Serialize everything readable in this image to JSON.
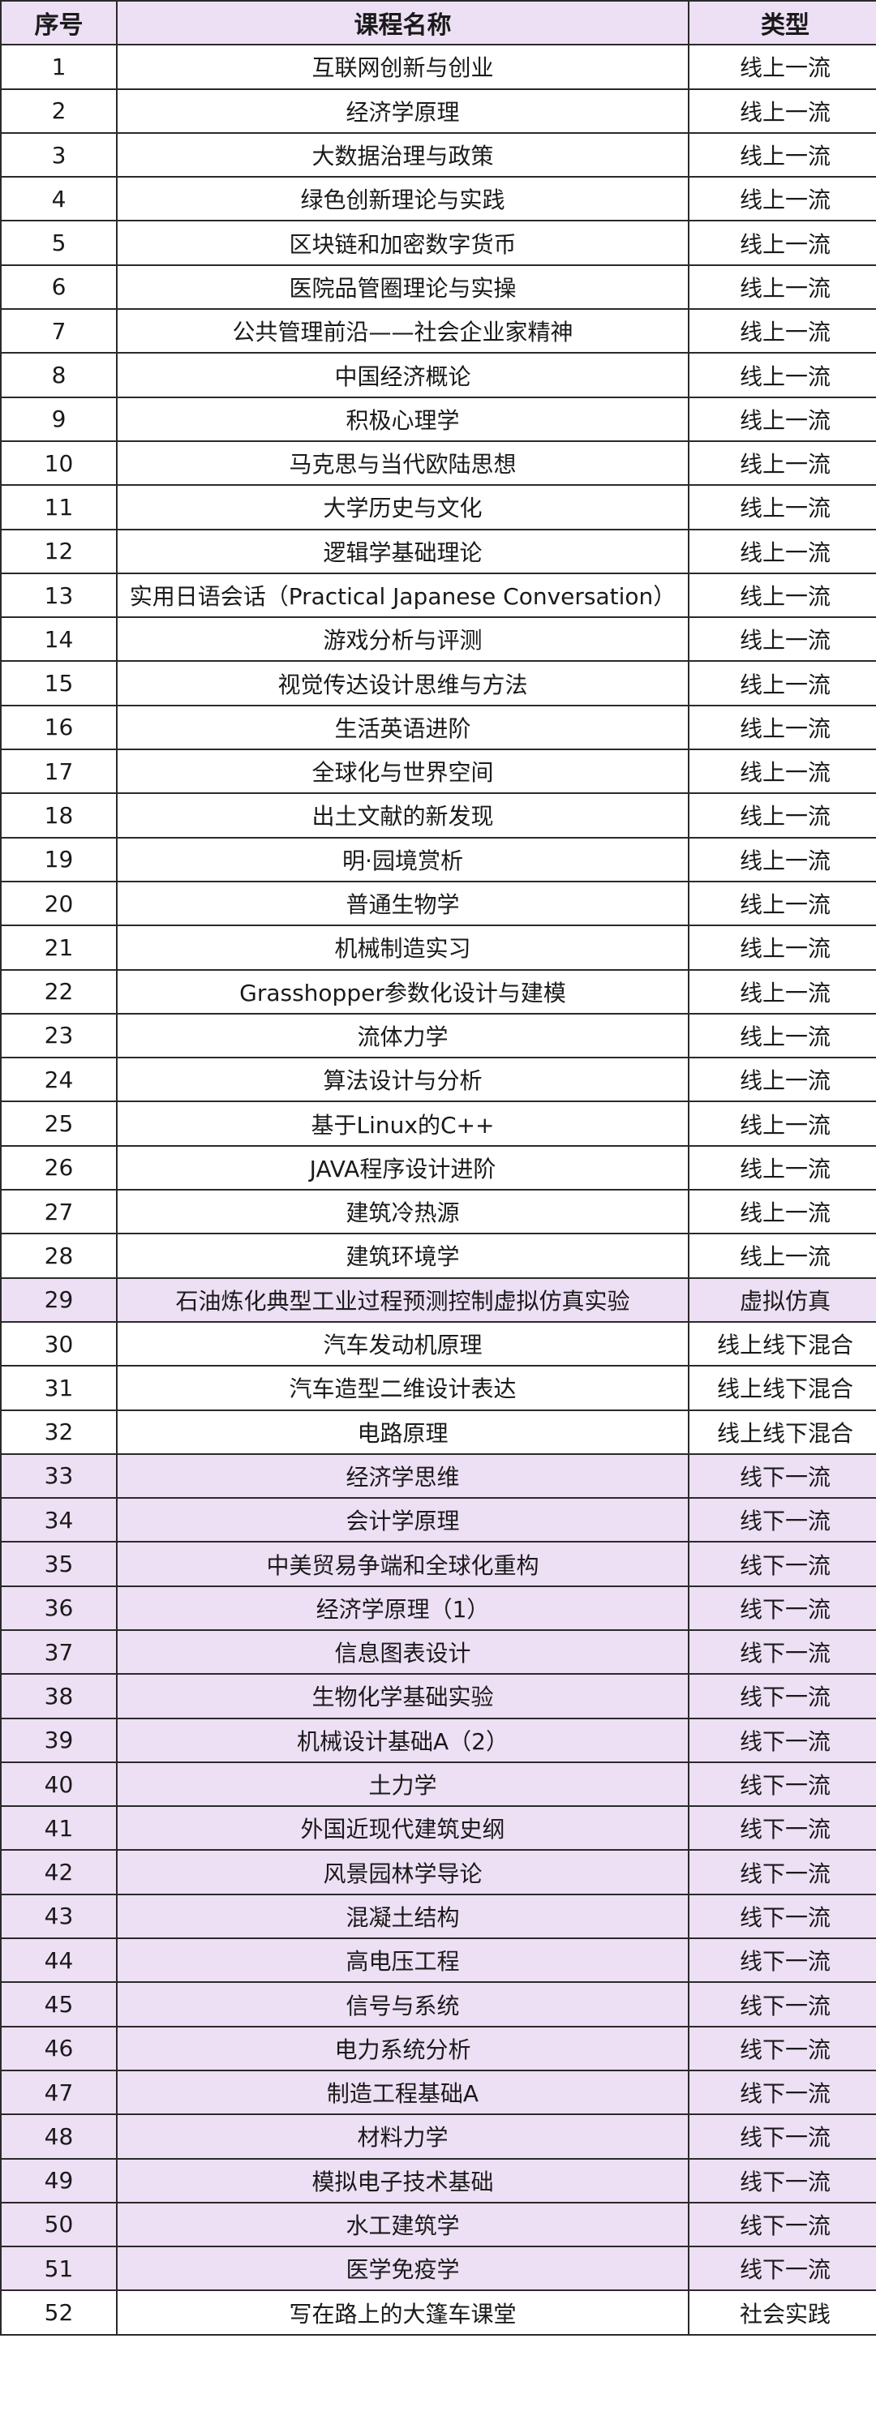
{
  "header_bg": "#eddff4",
  "columns": [
    "序号",
    "课程名称",
    "类型"
  ],
  "rows": [
    {
      "no": "1",
      "name": "互联网创新与创业",
      "type": "线上一流"
    },
    {
      "no": "2",
      "name": "经济学原理",
      "type": "线上一流"
    },
    {
      "no": "3",
      "name": "大数据治理与政策",
      "type": "线上一流"
    },
    {
      "no": "4",
      "name": "绿色创新理论与实践",
      "type": "线上一流"
    },
    {
      "no": "5",
      "name": "区块链和加密数字货币",
      "type": "线上一流"
    },
    {
      "no": "6",
      "name": "医院品管圈理论与实操",
      "type": "线上一流"
    },
    {
      "no": "7",
      "name": "公共管理前沿——社会企业家精神",
      "type": "线上一流"
    },
    {
      "no": "8",
      "name": "中国经济概论",
      "type": "线上一流"
    },
    {
      "no": "9",
      "name": "积极心理学",
      "type": "线上一流"
    },
    {
      "no": "10",
      "name": "马克思与当代欧陆思想",
      "type": "线上一流"
    },
    {
      "no": "11",
      "name": "大学历史与文化",
      "type": "线上一流"
    },
    {
      "no": "12",
      "name": "逻辑学基础理论",
      "type": "线上一流"
    },
    {
      "no": "13",
      "name": "实用日语会话（Practical Japanese Conversation）",
      "type": "线上一流"
    },
    {
      "no": "14",
      "name": "游戏分析与评测",
      "type": "线上一流"
    },
    {
      "no": "15",
      "name": "视觉传达设计思维与方法",
      "type": "线上一流"
    },
    {
      "no": "16",
      "name": "生活英语进阶",
      "type": "线上一流"
    },
    {
      "no": "17",
      "name": "全球化与世界空间",
      "type": "线上一流"
    },
    {
      "no": "18",
      "name": "出土文献的新发现",
      "type": "线上一流"
    },
    {
      "no": "19",
      "name": "明·园境赏析",
      "type": "线上一流"
    },
    {
      "no": "20",
      "name": "普通生物学",
      "type": "线上一流"
    },
    {
      "no": "21",
      "name": "机械制造实习",
      "type": "线上一流"
    },
    {
      "no": "22",
      "name": "Grasshopper参数化设计与建模",
      "type": "线上一流"
    },
    {
      "no": "23",
      "name": "流体力学",
      "type": "线上一流"
    },
    {
      "no": "24",
      "name": "算法设计与分析",
      "type": "线上一流"
    },
    {
      "no": "25",
      "name": "基于Linux的C++",
      "type": "线上一流"
    },
    {
      "no": "26",
      "name": "JAVA程序设计进阶",
      "type": "线上一流"
    },
    {
      "no": "27",
      "name": "建筑冷热源",
      "type": "线上一流"
    },
    {
      "no": "28",
      "name": "建筑环境学",
      "type": "线上一流"
    },
    {
      "no": "29",
      "name": "石油炼化典型工业过程预测控制虚拟仿真实验",
      "type": "虚拟仿真",
      "highlight": true
    },
    {
      "no": "30",
      "name": "汽车发动机原理",
      "type": "线上线下混合"
    },
    {
      "no": "31",
      "name": "汽车造型二维设计表达",
      "type": "线上线下混合"
    },
    {
      "no": "32",
      "name": "电路原理",
      "type": "线上线下混合"
    },
    {
      "no": "33",
      "name": "经济学思维",
      "type": "线下一流",
      "highlight": true
    },
    {
      "no": "34",
      "name": "会计学原理",
      "type": "线下一流",
      "highlight": true
    },
    {
      "no": "35",
      "name": "中美贸易争端和全球化重构",
      "type": "线下一流",
      "highlight": true
    },
    {
      "no": "36",
      "name": "经济学原理（1）",
      "type": "线下一流",
      "highlight": true
    },
    {
      "no": "37",
      "name": "信息图表设计",
      "type": "线下一流",
      "highlight": true
    },
    {
      "no": "38",
      "name": "生物化学基础实验",
      "type": "线下一流",
      "highlight": true
    },
    {
      "no": "39",
      "name": "机械设计基础A（2）",
      "type": "线下一流",
      "highlight": true
    },
    {
      "no": "40",
      "name": "土力学",
      "type": "线下一流",
      "highlight": true
    },
    {
      "no": "41",
      "name": "外国近现代建筑史纲",
      "type": "线下一流",
      "highlight": true
    },
    {
      "no": "42",
      "name": "风景园林学导论",
      "type": "线下一流",
      "highlight": true
    },
    {
      "no": "43",
      "name": "混凝土结构",
      "type": "线下一流",
      "highlight": true
    },
    {
      "no": "44",
      "name": "高电压工程",
      "type": "线下一流",
      "highlight": true
    },
    {
      "no": "45",
      "name": "信号与系统",
      "type": "线下一流",
      "highlight": true
    },
    {
      "no": "46",
      "name": "电力系统分析",
      "type": "线下一流",
      "highlight": true
    },
    {
      "no": "47",
      "name": "制造工程基础A",
      "type": "线下一流",
      "highlight": true
    },
    {
      "no": "48",
      "name": "材料力学",
      "type": "线下一流",
      "highlight": true
    },
    {
      "no": "49",
      "name": "模拟电子技术基础",
      "type": "线下一流",
      "highlight": true
    },
    {
      "no": "50",
      "name": "水工建筑学",
      "type": "线下一流",
      "highlight": true
    },
    {
      "no": "51",
      "name": "医学免疫学",
      "type": "线下一流",
      "highlight": true
    },
    {
      "no": "52",
      "name": "写在路上的大篷车课堂",
      "type": "社会实践"
    }
  ]
}
